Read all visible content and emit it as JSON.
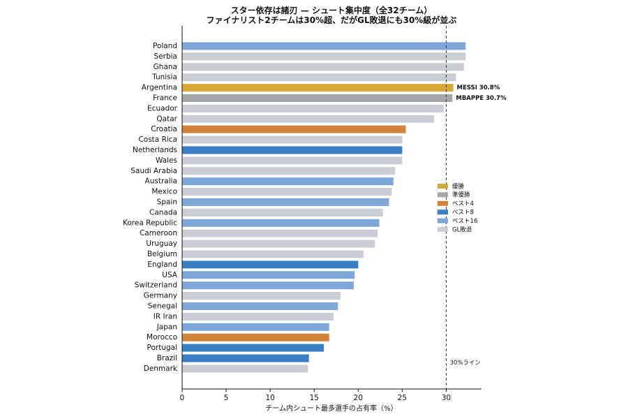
{
  "chart_data": {
    "type": "bar",
    "orientation": "horizontal",
    "title": "スター依存は諸刃 — シュート集中度（全32チーム）",
    "subtitle": "ファイナリスト2チームは30%超、だがGL敗退にも30%級が並ぶ",
    "xlabel": "チーム内シュート最多選手の占有率（%）",
    "ylabel": "",
    "xlim": [
      0,
      34
    ],
    "xticks": [
      0,
      5,
      10,
      15,
      20,
      25,
      30
    ],
    "grid": false,
    "legend_position": "right-middle",
    "colors": {
      "優勝": "#d4a93a",
      "準優勝": "#a3a6ab",
      "ベスト4": "#d2823a",
      "ベスト8": "#3a7ec4",
      "ベスト16": "#7ea7d8",
      "GL敗退": "#c9ced4"
    },
    "legend": [
      "優勝",
      "準優勝",
      "ベスト4",
      "ベスト8",
      "ベスト16",
      "GL敗退"
    ],
    "bars": [
      {
        "team": "Poland",
        "value": 32.2,
        "stage": "ベスト16"
      },
      {
        "team": "Serbia",
        "value": 32.2,
        "stage": "GL敗退"
      },
      {
        "team": "Ghana",
        "value": 32.0,
        "stage": "GL敗退"
      },
      {
        "team": "Tunisia",
        "value": 31.1,
        "stage": "GL敗退"
      },
      {
        "team": "Argentina",
        "value": 30.8,
        "stage": "優勝"
      },
      {
        "team": "France",
        "value": 30.7,
        "stage": "準優勝"
      },
      {
        "team": "Ecuador",
        "value": 29.7,
        "stage": "GL敗退"
      },
      {
        "team": "Qatar",
        "value": 28.6,
        "stage": "GL敗退"
      },
      {
        "team": "Croatia",
        "value": 25.4,
        "stage": "ベスト4"
      },
      {
        "team": "Costa Rica",
        "value": 25.0,
        "stage": "GL敗退"
      },
      {
        "team": "Netherlands",
        "value": 25.0,
        "stage": "ベスト8"
      },
      {
        "team": "Wales",
        "value": 25.0,
        "stage": "GL敗退"
      },
      {
        "team": "Saudi Arabia",
        "value": 24.2,
        "stage": "GL敗退"
      },
      {
        "team": "Australia",
        "value": 24.0,
        "stage": "ベスト16"
      },
      {
        "team": "Mexico",
        "value": 23.8,
        "stage": "GL敗退"
      },
      {
        "team": "Spain",
        "value": 23.5,
        "stage": "ベスト16"
      },
      {
        "team": "Canada",
        "value": 22.8,
        "stage": "GL敗退"
      },
      {
        "team": "Korea Republic",
        "value": 22.4,
        "stage": "ベスト16"
      },
      {
        "team": "Cameroon",
        "value": 22.2,
        "stage": "GL敗退"
      },
      {
        "team": "Uruguay",
        "value": 21.9,
        "stage": "GL敗退"
      },
      {
        "team": "Belgium",
        "value": 20.6,
        "stage": "GL敗退"
      },
      {
        "team": "England",
        "value": 20.0,
        "stage": "ベスト8"
      },
      {
        "team": "USA",
        "value": 19.6,
        "stage": "ベスト16"
      },
      {
        "team": "Switzerland",
        "value": 19.5,
        "stage": "ベスト16"
      },
      {
        "team": "Germany",
        "value": 18.0,
        "stage": "GL敗退"
      },
      {
        "team": "Senegal",
        "value": 17.7,
        "stage": "ベスト16"
      },
      {
        "team": "IR Iran",
        "value": 17.2,
        "stage": "GL敗退"
      },
      {
        "team": "Japan",
        "value": 16.7,
        "stage": "ベスト16"
      },
      {
        "team": "Morocco",
        "value": 16.7,
        "stage": "ベスト4"
      },
      {
        "team": "Portugal",
        "value": 16.1,
        "stage": "ベスト8"
      },
      {
        "team": "Brazil",
        "value": 14.4,
        "stage": "ベスト8"
      },
      {
        "team": "Denmark",
        "value": 14.3,
        "stage": "GL敗退"
      }
    ],
    "annotations": [
      {
        "team": "Argentina",
        "text": "MESSI 30.8%"
      },
      {
        "team": "France",
        "text": "MBAPPE 30.7%"
      }
    ],
    "reference_line": {
      "value": 30,
      "label": "30%ライン",
      "style": "dashed"
    }
  }
}
